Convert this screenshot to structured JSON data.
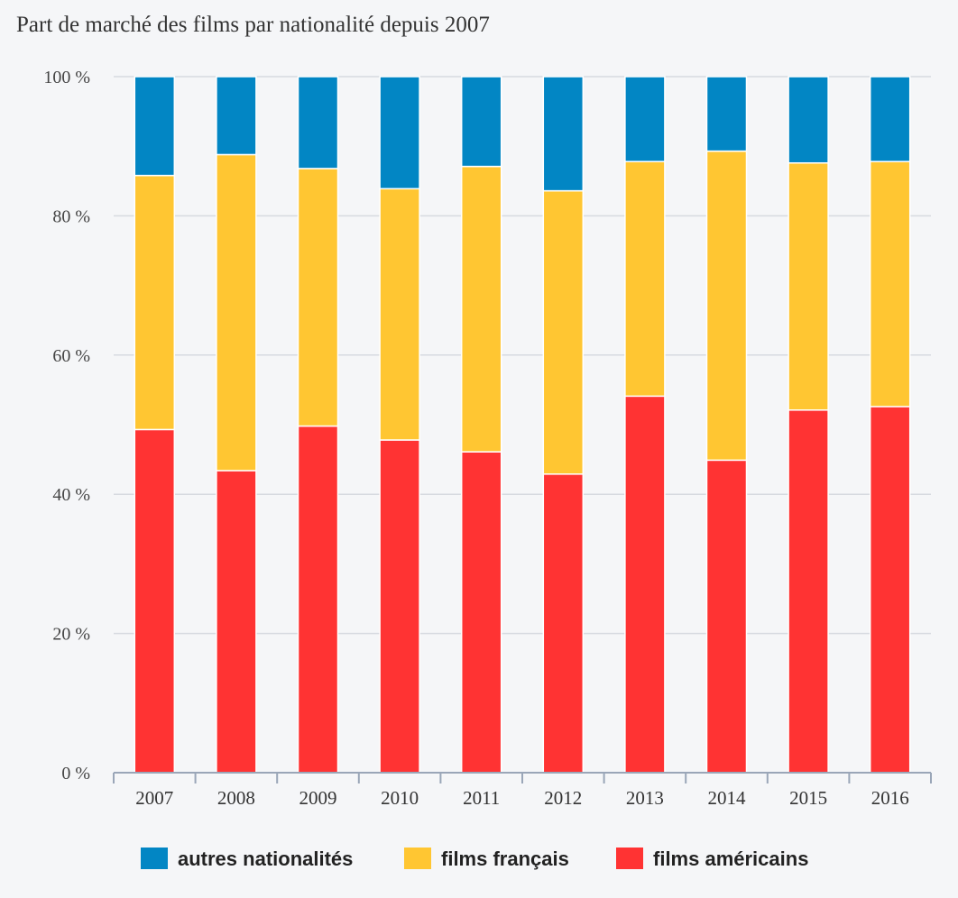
{
  "chart_data": {
    "type": "bar",
    "stacked": true,
    "title": "Part de marché des films par nationalité depuis 2007",
    "categories": [
      "2007",
      "2008",
      "2009",
      "2010",
      "2011",
      "2012",
      "2013",
      "2014",
      "2015",
      "2016"
    ],
    "series": [
      {
        "name": "films américains",
        "color": "#ff3333",
        "values": [
          49.3,
          43.4,
          49.8,
          47.8,
          46.1,
          42.9,
          54.1,
          44.9,
          52.1,
          52.6
        ]
      },
      {
        "name": "films français",
        "color": "#ffc632",
        "values": [
          36.5,
          45.4,
          37.0,
          36.1,
          41.0,
          40.7,
          33.7,
          44.4,
          35.5,
          35.2
        ]
      },
      {
        "name": "autres nationalités",
        "color": "#0286c4",
        "values": [
          14.2,
          11.2,
          13.2,
          16.1,
          12.9,
          16.4,
          12.2,
          10.7,
          12.4,
          12.2
        ]
      }
    ],
    "ylim": [
      0,
      100
    ],
    "yticks": [
      "0 %",
      "20 %",
      "40 %",
      "60 %",
      "80 %",
      "100 %"
    ],
    "legend": [
      {
        "name": "autres nationalités",
        "color": "#0286c4"
      },
      {
        "name": "films français",
        "color": "#ffc632"
      },
      {
        "name": "films américains",
        "color": "#ff3333"
      }
    ],
    "legend_position": "bottom",
    "grid": true
  }
}
